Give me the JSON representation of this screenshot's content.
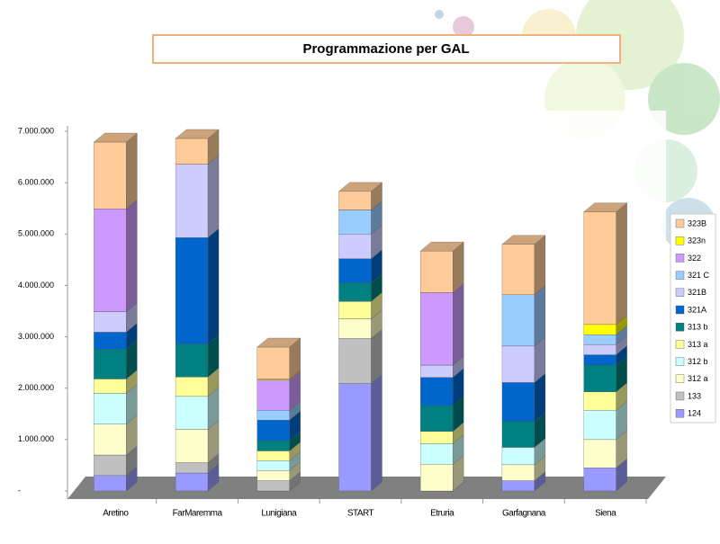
{
  "chart_data": {
    "type": "bar3d-stacked",
    "title": "Programmazione per GAL",
    "categories": [
      "Aretino",
      "FarMaremma",
      "Lunigiana",
      "START",
      "Etruria",
      "Garfagnana",
      "Siena"
    ],
    "series": [
      {
        "name": "124",
        "color": "#9999ff",
        "values": [
          300000,
          350000,
          0,
          2090000,
          0,
          200000,
          450000
        ]
      },
      {
        "name": "133",
        "color": "#c0c0c0",
        "values": [
          400000,
          200000,
          200000,
          880000,
          0,
          0,
          0
        ]
      },
      {
        "name": "312 a",
        "color": "#ffffcc",
        "values": [
          600000,
          650000,
          200000,
          380000,
          520000,
          310000,
          550000
        ]
      },
      {
        "name": "312 b",
        "color": "#ccffff",
        "values": [
          600000,
          640000,
          190000,
          0,
          400000,
          340000,
          570000
        ]
      },
      {
        "name": "313 a",
        "color": "#ffff99",
        "values": [
          280000,
          380000,
          190000,
          340000,
          240000,
          0,
          360000
        ]
      },
      {
        "name": "313 b",
        "color": "#008080",
        "values": [
          580000,
          640000,
          200000,
          360000,
          500000,
          500000,
          520000
        ]
      },
      {
        "name": "321A",
        "color": "#0066cc",
        "values": [
          330000,
          2070000,
          400000,
          470000,
          550000,
          760000,
          200000
        ]
      },
      {
        "name": "321B",
        "color": "#ccccff",
        "values": [
          400000,
          1430000,
          0,
          480000,
          240000,
          710000,
          200000
        ]
      },
      {
        "name": "321 C",
        "color": "#99ccff",
        "values": [
          0,
          0,
          190000,
          470000,
          0,
          1000000,
          190000
        ]
      },
      {
        "name": "322",
        "color": "#cc99ff",
        "values": [
          2000000,
          0,
          590000,
          0,
          1410000,
          0,
          0
        ]
      },
      {
        "name": "323n",
        "color": "#ffff00",
        "values": [
          0,
          0,
          20000,
          0,
          0,
          0,
          200000
        ]
      },
      {
        "name": "323B",
        "color": "#ffcc99",
        "values": [
          1300000,
          500000,
          620000,
          360000,
          810000,
          980000,
          2190000
        ]
      }
    ],
    "ylim": [
      0,
      7000000
    ],
    "yticks": [
      {
        "value": 0,
        "label": "-"
      },
      {
        "value": 1000000,
        "label": "1.000.000"
      },
      {
        "value": 2000000,
        "label": "2.000.000"
      },
      {
        "value": 3000000,
        "label": "3.000.000"
      },
      {
        "value": 4000000,
        "label": "4.000.000"
      },
      {
        "value": 5000000,
        "label": "5.000.000"
      },
      {
        "value": 6000000,
        "label": "6.000.000"
      },
      {
        "value": 7000000,
        "label": "7.000.000"
      }
    ],
    "legend": "right"
  }
}
